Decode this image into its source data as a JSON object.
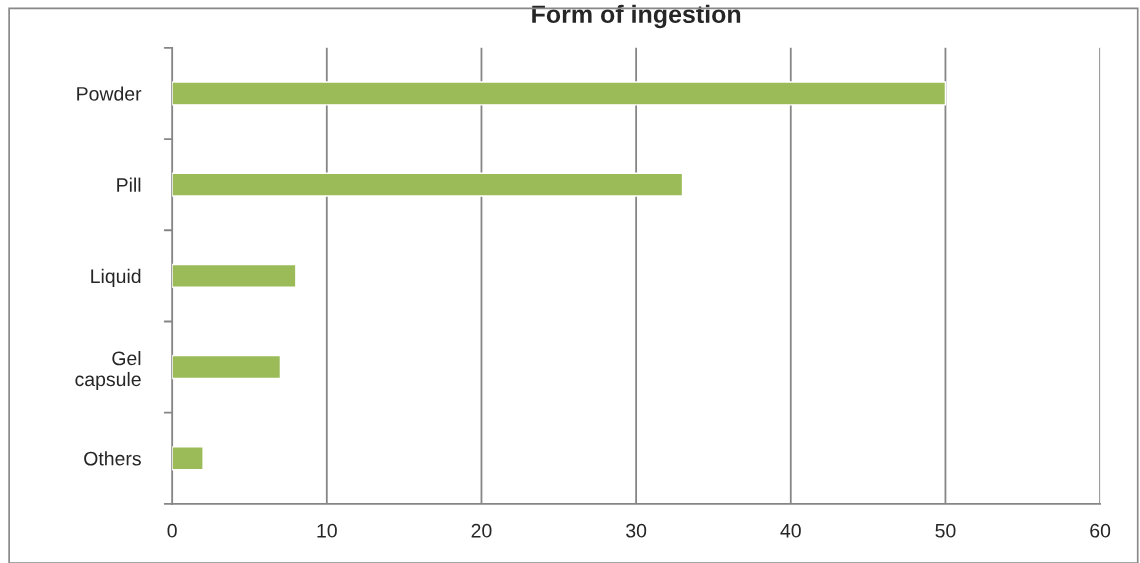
{
  "chart_data": {
    "type": "bar",
    "orientation": "horizontal",
    "title": "Form of ingestion",
    "categories": [
      "Powder",
      "Pill",
      "Liquid",
      "Gel\ncapsule",
      "Others"
    ],
    "values": [
      50,
      33,
      8,
      7,
      2
    ],
    "color": "#9bbb59",
    "xlim": [
      0,
      60
    ],
    "xticks": [
      0,
      10,
      20,
      30,
      40,
      50,
      60
    ],
    "grid": "x"
  }
}
